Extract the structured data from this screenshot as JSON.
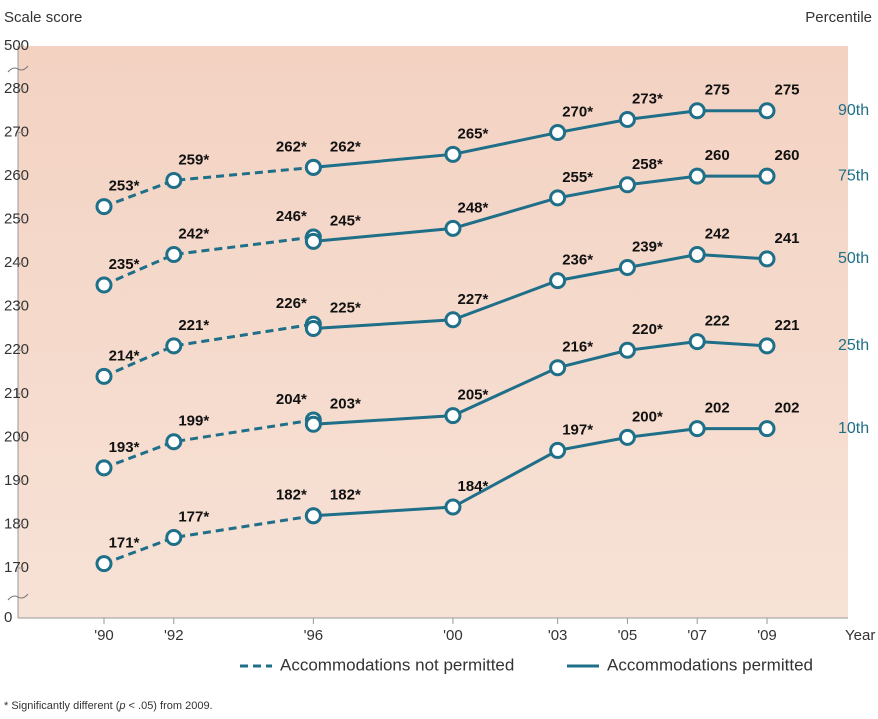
{
  "chart_data": {
    "type": "line",
    "y_label": "Scale score",
    "y2_label": "Percentile",
    "x_label": "Year",
    "x": [
      1990,
      1992,
      1996,
      2000,
      2003,
      2005,
      2007,
      2009
    ],
    "xticks": [
      {
        "value": 1990,
        "label": "'90"
      },
      {
        "value": 1992,
        "label": "'92"
      },
      {
        "value": 1996,
        "label": "'96"
      },
      {
        "value": 2000,
        "label": "'00"
      },
      {
        "value": 2003,
        "label": "'03"
      },
      {
        "value": 2005,
        "label": "'05"
      },
      {
        "value": 2007,
        "label": "'07"
      },
      {
        "value": 2009,
        "label": "'09"
      }
    ],
    "xlim": [
      1990,
      2009
    ],
    "ylim": [
      170,
      280
    ],
    "yticks": [
      170,
      180,
      190,
      200,
      210,
      220,
      230,
      240,
      250,
      260,
      270,
      280
    ],
    "break_ticks": [
      0,
      500
    ],
    "color": "#1f6f89",
    "legend": [
      {
        "name": "Accommodations not permitted",
        "dashed": true
      },
      {
        "name": "Accommodations permitted",
        "dashed": false
      }
    ],
    "series": [
      {
        "name": "90th",
        "not_permitted": [
          253,
          259,
          262,
          null,
          null,
          null,
          null,
          null
        ],
        "not_permitted_labels": [
          "253*",
          "259*",
          "262*",
          null,
          null,
          null,
          null,
          null
        ],
        "permitted": [
          null,
          null,
          262,
          265,
          270,
          273,
          275,
          275
        ],
        "permitted_labels": [
          null,
          null,
          "262*",
          "265*",
          "270*",
          "273*",
          "275",
          "275"
        ]
      },
      {
        "name": "75th",
        "not_permitted": [
          235,
          242,
          246,
          null,
          null,
          null,
          null,
          null
        ],
        "not_permitted_labels": [
          "235*",
          "242*",
          "246*",
          null,
          null,
          null,
          null,
          null
        ],
        "permitted": [
          null,
          null,
          245,
          248,
          255,
          258,
          260,
          260
        ],
        "permitted_labels": [
          null,
          null,
          "245*",
          "248*",
          "255*",
          "258*",
          "260",
          "260"
        ]
      },
      {
        "name": "50th",
        "not_permitted": [
          214,
          221,
          226,
          null,
          null,
          null,
          null,
          null
        ],
        "not_permitted_labels": [
          "214*",
          "221*",
          "226*",
          null,
          null,
          null,
          null,
          null
        ],
        "permitted": [
          null,
          null,
          225,
          227,
          236,
          239,
          242,
          241
        ],
        "permitted_labels": [
          null,
          null,
          "225*",
          "227*",
          "236*",
          "239*",
          "242",
          "241"
        ]
      },
      {
        "name": "25th",
        "not_permitted": [
          193,
          199,
          204,
          null,
          null,
          null,
          null,
          null
        ],
        "not_permitted_labels": [
          "193*",
          "199*",
          "204*",
          null,
          null,
          null,
          null,
          null
        ],
        "permitted": [
          null,
          null,
          203,
          205,
          216,
          220,
          222,
          221
        ],
        "permitted_labels": [
          null,
          null,
          "203*",
          "205*",
          "216*",
          "220*",
          "222",
          "221"
        ]
      },
      {
        "name": "10th",
        "not_permitted": [
          171,
          177,
          182,
          null,
          null,
          null,
          null,
          null
        ],
        "not_permitted_labels": [
          "171*",
          "177*",
          "182*",
          null,
          null,
          null,
          null,
          null
        ],
        "permitted": [
          null,
          null,
          182,
          184,
          197,
          200,
          202,
          202
        ],
        "permitted_labels": [
          null,
          null,
          "182*",
          "184*",
          "197*",
          "200*",
          "202",
          "202"
        ]
      }
    ],
    "footnote_prefix": "* Significantly different (",
    "footnote_italic": "p",
    "footnote_suffix": " < .05) from 2009."
  }
}
